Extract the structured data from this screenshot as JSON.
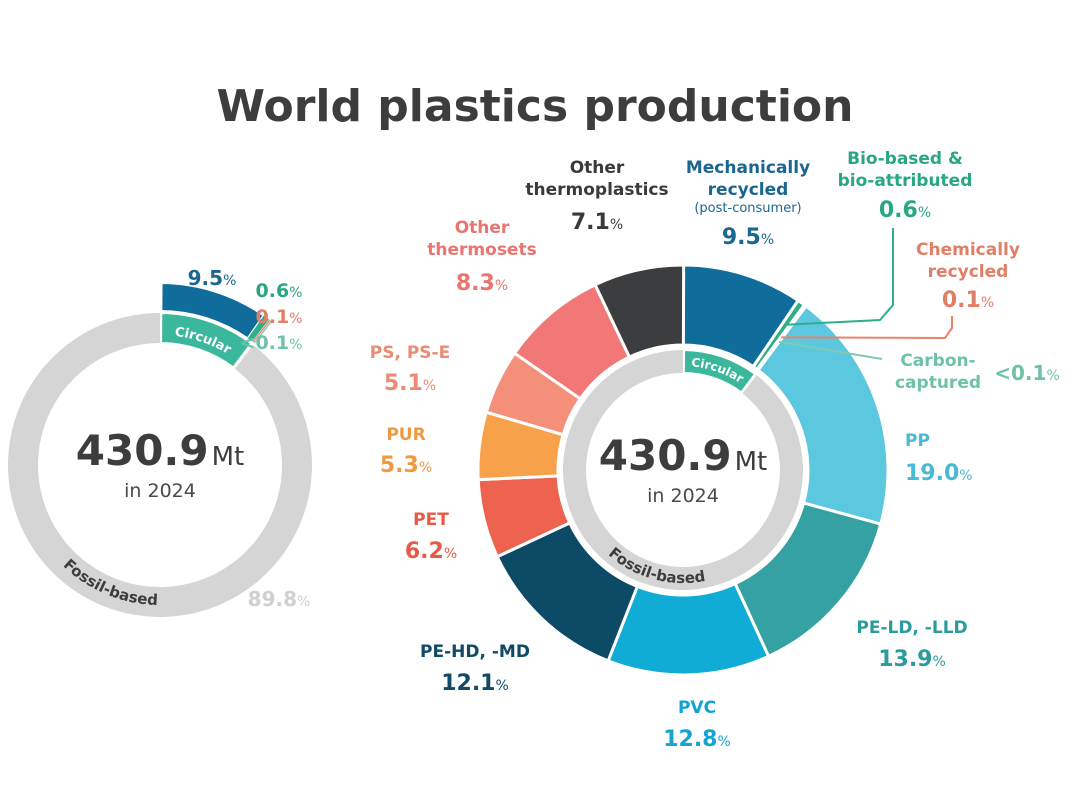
{
  "colors": {
    "gray_ring": "#d5d5d5",
    "circular_band": "#3bb89c",
    "mech": "#0f6c9b",
    "bio": "#2fae8c",
    "chem": "#e8836a",
    "carbon": "#7fcbb0"
  },
  "chart_data": [
    {
      "type": "pie",
      "title": "World plastics production",
      "center": {
        "value": "430.9",
        "unit": "Mt",
        "subtitle": "in 2024"
      },
      "ring_labels": {
        "circular": "Circular",
        "fossil": "Fossil-based"
      },
      "summary_slices": [
        {
          "key": "mech",
          "label": "",
          "value": 9.5,
          "value_text": "9.5",
          "pct": "%",
          "color": "#0f6c9b",
          "text_color": "#1a6690"
        },
        {
          "key": "bio",
          "label": "",
          "value": 0.6,
          "value_text": "0.6",
          "pct": "%",
          "color": "#2fae8c",
          "text_color": "#29a683"
        },
        {
          "key": "chem",
          "label": "",
          "value": 0.1,
          "value_text": "0.1",
          "pct": "%",
          "color": "#e8836a",
          "text_color": "#e07e66"
        },
        {
          "key": "carbon",
          "label": "",
          "value": 0.05,
          "value_text": "<0.1",
          "pct": "%",
          "color": "#7fcbb0",
          "text_color": "#6fc2a6"
        },
        {
          "key": "fossil",
          "label": "",
          "value": 89.8,
          "value_text": "89.8",
          "pct": "%",
          "color": "#d5d5d5",
          "text_color": "#d0d0d0"
        }
      ]
    },
    {
      "type": "pie",
      "title": "World plastics production",
      "center": {
        "value": "430.9",
        "unit": "Mt",
        "subtitle": "in 2024"
      },
      "ring_labels": {
        "circular": "Circular",
        "fossil": "Fossil-based"
      },
      "slices": [
        {
          "key": "mech",
          "label": "Mechanically recycled",
          "label_lines": [
            "Mechanically",
            "recycled"
          ],
          "note": "(post-consumer)",
          "value": 9.5,
          "value_text": "9.5",
          "pct": "%",
          "color": "#0f6c9b",
          "text_color": "#1a6690"
        },
        {
          "key": "bio",
          "label": "Bio-based & bio-attributed",
          "label_lines": [
            "Bio-based &",
            "bio-attributed"
          ],
          "value": 0.6,
          "value_text": "0.6",
          "pct": "%",
          "color": "#2fae8c",
          "text_color": "#29a683"
        },
        {
          "key": "chem",
          "label": "Chemically recycled",
          "label_lines": [
            "Chemically",
            "recycled"
          ],
          "value": 0.1,
          "value_text": "0.1",
          "pct": "%",
          "color": "#e8836a",
          "text_color": "#e07e66"
        },
        {
          "key": "carbon",
          "label": "Carbon-captured",
          "label_lines": [
            "Carbon-",
            "captured"
          ],
          "value": 0.05,
          "value_text": "<0.1",
          "pct": "%",
          "color": "#7fcbb0",
          "text_color": "#6fc2a6"
        },
        {
          "key": "pp",
          "label": "PP",
          "label_lines": [
            "PP"
          ],
          "value": 19.0,
          "value_text": "19.0",
          "pct": "%",
          "color": "#5bc8e0",
          "text_color": "#49b9d6"
        },
        {
          "key": "peld",
          "label": "PE-LD, -LLD",
          "label_lines": [
            "PE-LD, -LLD"
          ],
          "value": 13.9,
          "value_text": "13.9",
          "pct": "%",
          "color": "#35a1a3",
          "text_color": "#2b9b9c"
        },
        {
          "key": "pvc",
          "label": "PVC",
          "label_lines": [
            "PVC"
          ],
          "value": 12.8,
          "value_text": "12.8",
          "pct": "%",
          "color": "#11acd6",
          "text_color": "#13a5cf"
        },
        {
          "key": "pehd",
          "label": "PE-HD, -MD",
          "label_lines": [
            "PE-HD, -MD"
          ],
          "value": 12.1,
          "value_text": "12.1",
          "pct": "%",
          "color": "#0c4a66",
          "text_color": "#0f4a66"
        },
        {
          "key": "pet",
          "label": "PET",
          "label_lines": [
            "PET"
          ],
          "value": 6.2,
          "value_text": "6.2",
          "pct": "%",
          "color": "#ee6350",
          "text_color": "#e65a47"
        },
        {
          "key": "pur",
          "label": "PUR",
          "label_lines": [
            "PUR"
          ],
          "value": 5.3,
          "value_text": "5.3",
          "pct": "%",
          "color": "#f7a14a",
          "text_color": "#f09a3f"
        },
        {
          "key": "ps",
          "label": "PS, PS-E",
          "label_lines": [
            "PS, PS-E"
          ],
          "value": 5.1,
          "value_text": "5.1",
          "pct": "%",
          "color": "#f4907a",
          "text_color": "#ec8a74"
        },
        {
          "key": "thermosets",
          "label": "Other thermosets",
          "label_lines": [
            "Other",
            "thermosets"
          ],
          "value": 8.3,
          "value_text": "8.3",
          "pct": "%",
          "color": "#f27878",
          "text_color": "#ea7470"
        },
        {
          "key": "thermoplastics",
          "label": "Other thermoplastics",
          "label_lines": [
            "Other",
            "thermoplastics"
          ],
          "value": 7.1,
          "value_text": "7.1",
          "pct": "%",
          "color": "#3c3d3f",
          "text_color": "#3a3a3a"
        }
      ]
    }
  ]
}
